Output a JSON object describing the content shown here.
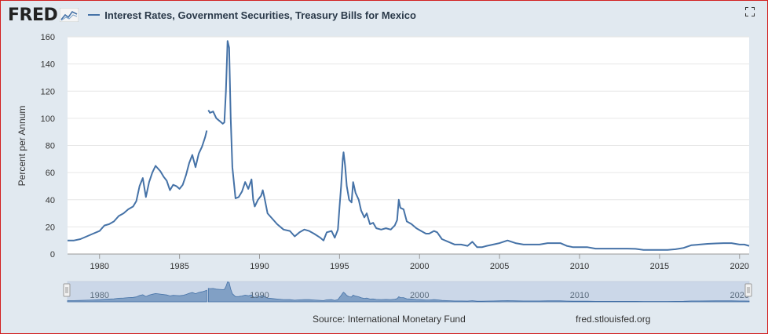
{
  "header": {
    "logo_text": "FRED",
    "logo_icon": "chart-line-icon",
    "title": "Interest Rates, Government Securities, Treasury Bills for Mexico",
    "fullscreen_icon": "fullscreen-icon"
  },
  "footer": {
    "source": "Source: International Monetary Fund",
    "url": "fred.stlouisfed.org"
  },
  "colors": {
    "series": "#4572a7",
    "background": "#e1e9f0",
    "plot": "#ffffff",
    "border": "#d21f1f"
  },
  "chart_data": {
    "type": "line",
    "title": "Interest Rates, Government Securities, Treasury Bills for Mexico",
    "ylabel": "Percent per Annum",
    "xlabel": "",
    "xlim": [
      1978,
      2020.6
    ],
    "ylim": [
      0,
      160
    ],
    "yticks": [
      0,
      20,
      40,
      60,
      80,
      100,
      120,
      140,
      160
    ],
    "xticks": [
      1980,
      1985,
      1990,
      1995,
      2000,
      2005,
      2010,
      2015,
      2020
    ],
    "tick_labels": {
      "y": [
        "0",
        "20",
        "40",
        "60",
        "80",
        "100",
        "120",
        "140",
        "160"
      ],
      "x": [
        "1980",
        "1985",
        "1990",
        "1995",
        "2000",
        "2005",
        "2010",
        "2015",
        "2020"
      ]
    },
    "navigator_labels": [
      "1980",
      "1990",
      "2000",
      "2010",
      "2020"
    ],
    "navigator_ticks": [
      1980,
      1990,
      2000,
      2010,
      2020
    ],
    "grid": true,
    "legend": "top-left",
    "series": [
      {
        "name": "Interest Rates, Government Securities, Treasury Bills for Mexico",
        "segments": [
          [
            [
              1978.0,
              10
            ],
            [
              1978.4,
              10
            ],
            [
              1978.8,
              11
            ],
            [
              1979.2,
              13
            ],
            [
              1979.6,
              15
            ],
            [
              1980.0,
              17
            ],
            [
              1980.3,
              21
            ],
            [
              1980.6,
              22
            ],
            [
              1980.9,
              24
            ],
            [
              1981.2,
              28
            ],
            [
              1981.5,
              30
            ],
            [
              1981.8,
              33
            ],
            [
              1982.1,
              35
            ],
            [
              1982.3,
              39
            ],
            [
              1982.5,
              50
            ],
            [
              1982.7,
              56
            ],
            [
              1982.9,
              42
            ],
            [
              1983.1,
              53
            ],
            [
              1983.3,
              60
            ],
            [
              1983.5,
              65
            ],
            [
              1983.8,
              61
            ],
            [
              1984.0,
              57
            ],
            [
              1984.2,
              54
            ],
            [
              1984.4,
              47
            ],
            [
              1984.6,
              51
            ],
            [
              1984.8,
              50
            ],
            [
              1985.0,
              48
            ],
            [
              1985.2,
              51
            ],
            [
              1985.4,
              58
            ],
            [
              1985.6,
              67
            ],
            [
              1985.8,
              73
            ],
            [
              1986.0,
              64
            ],
            [
              1986.2,
              74
            ],
            [
              1986.4,
              79
            ],
            [
              1986.6,
              86
            ],
            [
              1986.7,
              91
            ]
          ],
          [
            [
              1986.8,
              106
            ],
            [
              1986.9,
              104
            ],
            [
              1987.1,
              105
            ],
            [
              1987.3,
              100
            ],
            [
              1987.5,
              98
            ],
            [
              1987.7,
              96
            ],
            [
              1987.8,
              97
            ],
            [
              1987.9,
              120
            ],
            [
              1988.0,
              157
            ],
            [
              1988.1,
              152
            ],
            [
              1988.2,
              100
            ],
            [
              1988.3,
              64
            ],
            [
              1988.5,
              41
            ],
            [
              1988.7,
              42
            ],
            [
              1988.9,
              46
            ],
            [
              1989.1,
              53
            ],
            [
              1989.3,
              48
            ],
            [
              1989.5,
              55
            ],
            [
              1989.6,
              40
            ],
            [
              1989.7,
              35
            ],
            [
              1989.9,
              40
            ],
            [
              1990.1,
              43
            ],
            [
              1990.2,
              47
            ],
            [
              1990.3,
              42
            ],
            [
              1990.5,
              30
            ],
            [
              1990.8,
              26
            ],
            [
              1991.1,
              22
            ],
            [
              1991.5,
              18
            ],
            [
              1991.9,
              17
            ],
            [
              1992.2,
              13
            ],
            [
              1992.5,
              16
            ],
            [
              1992.8,
              18
            ],
            [
              1993.1,
              17
            ],
            [
              1993.4,
              15
            ],
            [
              1993.8,
              12
            ],
            [
              1994.0,
              10
            ],
            [
              1994.2,
              16
            ],
            [
              1994.5,
              17
            ],
            [
              1994.7,
              12
            ],
            [
              1994.9,
              18
            ],
            [
              1995.0,
              35
            ],
            [
              1995.1,
              50
            ],
            [
              1995.2,
              70
            ],
            [
              1995.25,
              75
            ],
            [
              1995.35,
              65
            ],
            [
              1995.45,
              50
            ],
            [
              1995.6,
              40
            ],
            [
              1995.75,
              38
            ],
            [
              1995.85,
              53
            ],
            [
              1996.0,
              45
            ],
            [
              1996.2,
              40
            ],
            [
              1996.35,
              32
            ],
            [
              1996.55,
              27
            ],
            [
              1996.7,
              30
            ],
            [
              1996.9,
              22
            ],
            [
              1997.1,
              23
            ],
            [
              1997.3,
              19
            ],
            [
              1997.6,
              18
            ],
            [
              1997.9,
              19
            ],
            [
              1998.2,
              18
            ],
            [
              1998.45,
              21
            ],
            [
              1998.6,
              25
            ],
            [
              1998.7,
              40
            ],
            [
              1998.8,
              34
            ],
            [
              1999.0,
              33
            ],
            [
              1999.2,
              24
            ],
            [
              1999.5,
              22
            ],
            [
              1999.8,
              19
            ],
            [
              2000.1,
              17
            ],
            [
              2000.4,
              15
            ],
            [
              2000.6,
              15
            ],
            [
              2000.9,
              17
            ],
            [
              2001.1,
              16
            ],
            [
              2001.4,
              11
            ],
            [
              2001.8,
              9
            ],
            [
              2002.2,
              7
            ],
            [
              2002.6,
              7
            ],
            [
              2003.0,
              6
            ],
            [
              2003.3,
              9
            ],
            [
              2003.6,
              5
            ],
            [
              2003.9,
              5
            ],
            [
              2004.2,
              6
            ],
            [
              2004.6,
              7
            ],
            [
              2005.0,
              8
            ],
            [
              2005.5,
              10
            ],
            [
              2006.0,
              8
            ],
            [
              2006.5,
              7
            ],
            [
              2007.0,
              7
            ],
            [
              2007.5,
              7
            ],
            [
              2008.0,
              8
            ],
            [
              2008.5,
              8
            ],
            [
              2008.8,
              8
            ],
            [
              2009.2,
              6
            ],
            [
              2009.6,
              5
            ],
            [
              2010.0,
              5
            ],
            [
              2010.5,
              5
            ],
            [
              2011.0,
              4
            ],
            [
              2011.5,
              4
            ],
            [
              2012.0,
              4
            ],
            [
              2012.5,
              4
            ],
            [
              2013.0,
              4
            ],
            [
              2013.5,
              3.8
            ],
            [
              2014.0,
              3
            ],
            [
              2014.5,
              3
            ],
            [
              2015.0,
              3
            ],
            [
              2015.5,
              3
            ],
            [
              2016.0,
              3.5
            ],
            [
              2016.5,
              4.5
            ],
            [
              2017.0,
              6.5
            ],
            [
              2017.5,
              7
            ],
            [
              2018.0,
              7.5
            ],
            [
              2018.5,
              7.8
            ],
            [
              2019.0,
              8
            ],
            [
              2019.5,
              8
            ],
            [
              2020.0,
              7
            ],
            [
              2020.3,
              7
            ],
            [
              2020.6,
              6
            ]
          ]
        ]
      }
    ]
  }
}
